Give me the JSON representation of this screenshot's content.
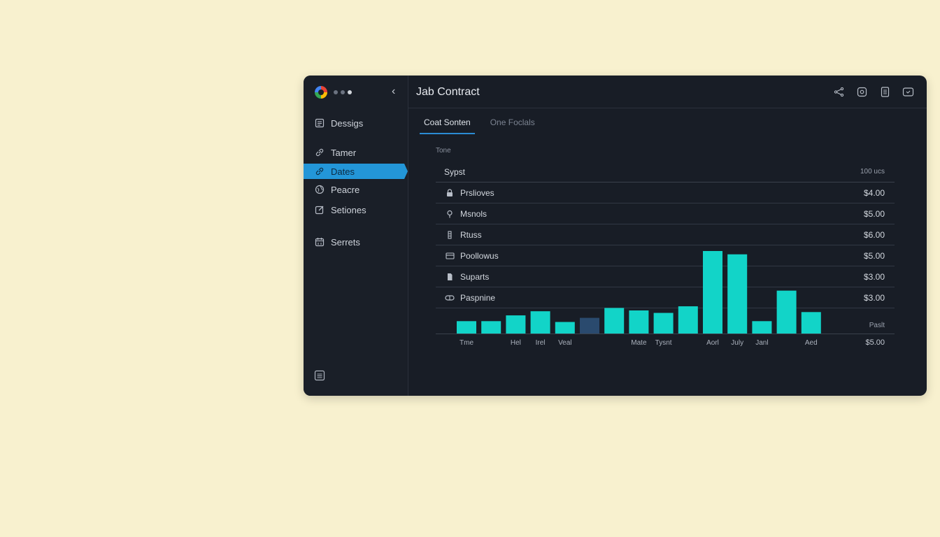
{
  "window": {
    "title": "Jab Contract"
  },
  "sidebar": {
    "items": [
      {
        "label": "Dessigs",
        "icon": "document-icon"
      },
      {
        "label": "Tamer",
        "icon": "link-icon"
      },
      {
        "label": "Dates",
        "icon": "link-icon",
        "active": true
      },
      {
        "label": "Peacre",
        "icon": "globe-icon"
      },
      {
        "label": "Setiones",
        "icon": "edit-icon"
      },
      {
        "label": "Serrets",
        "icon": "calendar-icon"
      }
    ]
  },
  "tabs": [
    {
      "label": "Coat Sonten",
      "active": true
    },
    {
      "label": "One Foclals",
      "active": false
    }
  ],
  "section_label": "Tone",
  "table": {
    "header_left": "Sypst",
    "header_right": "100 ucs",
    "rows": [
      {
        "label": "Prslioves",
        "value": "$4.00",
        "icon": "lock-icon"
      },
      {
        "label": "Msnols",
        "value": "$5.00",
        "icon": "pin-icon"
      },
      {
        "label": "Rtuss",
        "value": "$6.00",
        "icon": "bars-icon"
      },
      {
        "label": "Poollowus",
        "value": "$5.00",
        "icon": "card-icon"
      },
      {
        "label": "Suparts",
        "value": "$3.00",
        "icon": "file-icon"
      },
      {
        "label": "Paspnine",
        "value": "$3.00",
        "icon": "pill-icon"
      }
    ]
  },
  "chart_data": {
    "type": "bar",
    "categories": [
      "Tme",
      "",
      "Hel",
      "Irel",
      "Veal",
      "",
      "",
      "Mate",
      "Tysnt",
      "",
      "Aorl",
      "July",
      "Janl",
      "",
      "Aed"
    ],
    "values": [
      15,
      15,
      22,
      27,
      14,
      19,
      31,
      28,
      25,
      33,
      100,
      96,
      15,
      52,
      26
    ],
    "colors": [
      "#12d4c8",
      "#12d4c8",
      "#12d4c8",
      "#12d4c8",
      "#12d4c8",
      "#2a4a6e",
      "#12d4c8",
      "#12d4c8",
      "#12d4c8",
      "#12d4c8",
      "#12d4c8",
      "#12d4c8",
      "#12d4c8",
      "#12d4c8",
      "#12d4c8"
    ],
    "right_top_label": "Paslt",
    "right_bottom_label": "$5.00"
  }
}
